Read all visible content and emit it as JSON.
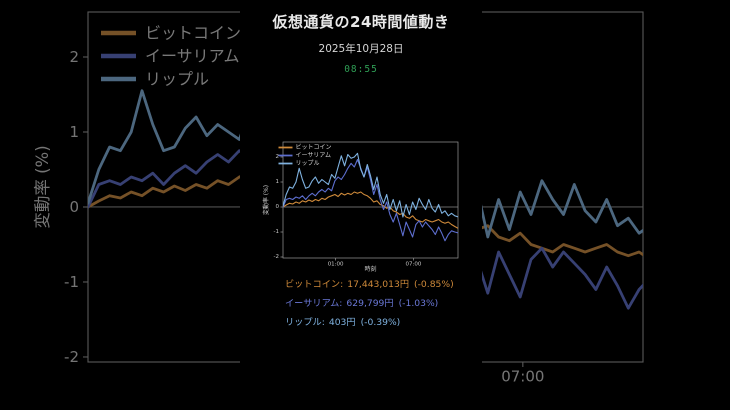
{
  "header": {
    "title": "仮想通貨の24時間値動き",
    "date": "2025年10月28日",
    "time": "08:55"
  },
  "colors": {
    "background": "#000000",
    "title_text": "#e9e9e9",
    "date_text": "#d6d6d6",
    "time_text": "#2f9e55",
    "axis": "#9a9a9a",
    "tick_text": "#c9c9c9",
    "zero_line": "#8a8a8a",
    "legend_text": "#cfcfcf",
    "bitcoin": "#cf8a3a",
    "ethereum": "#5d6ecf",
    "ripple": "#7fb2e0"
  },
  "chart_data": {
    "type": "line",
    "title": "仮想通貨の24時間値動き",
    "xlabel": "時刻",
    "ylabel": "変動率 (%)",
    "ylim": [
      -2.05,
      2.6
    ],
    "grid": "zero-line-only",
    "legend_position": "upper-left",
    "yticks": [
      2,
      1,
      0,
      -1,
      -2
    ],
    "xticks": [
      {
        "t": 4.06,
        "label": "01:00"
      },
      {
        "t": 10.06,
        "label": "07:00"
      }
    ],
    "x_hours_from_start": [
      0,
      0.25,
      0.5,
      0.75,
      1,
      1.25,
      1.5,
      1.75,
      2,
      2.25,
      2.5,
      2.75,
      3,
      3.25,
      3.5,
      3.75,
      4,
      4.25,
      4.5,
      4.75,
      5,
      5.25,
      5.5,
      5.75,
      6,
      6.25,
      6.5,
      6.75,
      7,
      7.25,
      7.5,
      7.75,
      8,
      8.25,
      8.5,
      8.75,
      9,
      9.25,
      9.5,
      9.75,
      10,
      10.25,
      10.5,
      10.75,
      11,
      11.25,
      11.5,
      11.75,
      12,
      12.25,
      12.5,
      12.75,
      13,
      13.25,
      13.5
    ],
    "series": [
      {
        "name": "ビットコイン",
        "color": "#cf8a3a",
        "values": [
          0,
          0.08,
          0.15,
          0.12,
          0.2,
          0.15,
          0.25,
          0.2,
          0.28,
          0.22,
          0.3,
          0.25,
          0.35,
          0.3,
          0.4,
          0.45,
          0.5,
          0.42,
          0.55,
          0.48,
          0.55,
          0.5,
          0.6,
          0.55,
          0.6,
          0.5,
          0.45,
          0.35,
          0.2,
          0.25,
          0.1,
          0.05,
          -0.05,
          0,
          -0.15,
          -0.2,
          -0.3,
          -0.25,
          -0.4,
          -0.45,
          -0.35,
          -0.5,
          -0.55,
          -0.6,
          -0.5,
          -0.55,
          -0.6,
          -0.55,
          -0.5,
          -0.6,
          -0.65,
          -0.6,
          -0.7,
          -0.78,
          -0.85
        ]
      },
      {
        "name": "イーサリアム",
        "color": "#5d6ecf",
        "values": [
          0,
          0.3,
          0.35,
          0.3,
          0.4,
          0.35,
          0.45,
          0.3,
          0.45,
          0.55,
          0.45,
          0.6,
          0.7,
          0.6,
          0.75,
          0.65,
          1.05,
          1.2,
          1.1,
          1.3,
          1.55,
          1.75,
          1.6,
          1.9,
          1.55,
          1.2,
          1.6,
          1.1,
          0.5,
          0.9,
          0.3,
          -0.1,
          0.2,
          -0.3,
          -0.6,
          -0.25,
          -0.7,
          -1.15,
          -0.6,
          -0.9,
          -1.2,
          -0.7,
          -0.55,
          -0.8,
          -0.6,
          -0.75,
          -0.9,
          -1.1,
          -0.8,
          -1.05,
          -1.35,
          -1.1,
          -0.95,
          -1.0,
          -1.03
        ]
      },
      {
        "name": "リップル",
        "color": "#7fb2e0",
        "values": [
          0.05,
          0.5,
          0.8,
          0.75,
          1.0,
          1.55,
          1.1,
          0.75,
          0.8,
          1.05,
          1.2,
          0.95,
          1.1,
          1.0,
          0.9,
          1.3,
          1.15,
          1.6,
          2.05,
          1.65,
          2.1,
          1.95,
          2.0,
          2.15,
          1.5,
          1.2,
          1.7,
          1.25,
          0.7,
          1.2,
          0.5,
          0.15,
          0.5,
          -0.1,
          0.3,
          -0.15,
          0.25,
          -0.4,
          0.1,
          -0.3,
          0.2,
          -0.1,
          0.35,
          0.1,
          -0.1,
          0.3,
          -0.05,
          -0.2,
          0.1,
          -0.25,
          -0.15,
          -0.35,
          -0.25,
          -0.35,
          -0.39
        ]
      }
    ]
  },
  "quotes": [
    {
      "label": "ビットコイン",
      "sep": ":",
      "price": "17,443,013円",
      "change": "(-0.85%)",
      "color": "#cf8a3a"
    },
    {
      "label": "イーサリアム",
      "sep": ":",
      "price": "629,799円",
      "change": "(-1.03%)",
      "color": "#6a78d6"
    },
    {
      "label": "リップル",
      "sep": ":",
      "price": "403円",
      "change": "(-0.39%)",
      "color": "#7fb2e0"
    }
  ]
}
